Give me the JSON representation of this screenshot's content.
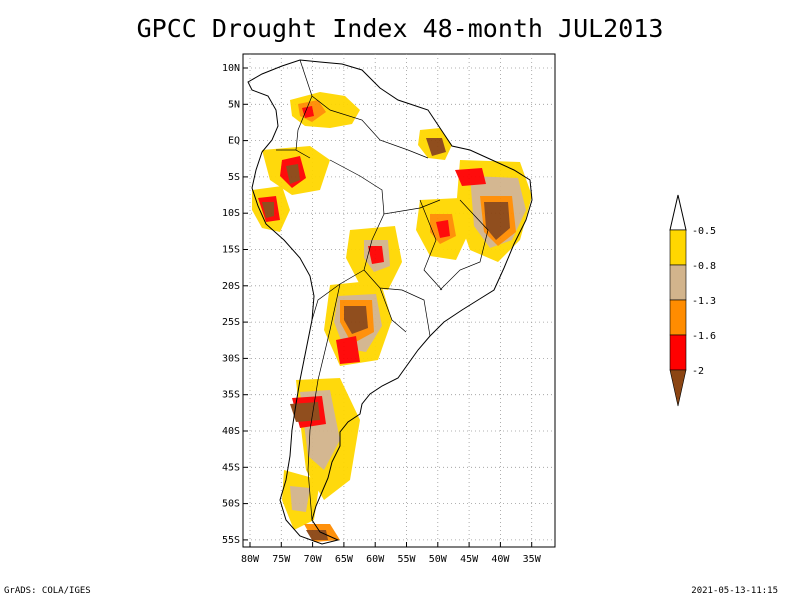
{
  "title": "GPCC Drought Index 48-month JUL2013",
  "footer": {
    "left": "GrADS: COLA/IGES",
    "right": "2021-05-13-11:15"
  },
  "colors": {
    "cat_m05": "#ffd700",
    "cat_m08": "#d2b48c",
    "cat_m13": "#ff8c00",
    "cat_m16": "#ff0000",
    "cat_m20": "#8b4513"
  },
  "map": {
    "lat_labels": [
      "10N",
      "5N",
      "EQ",
      "5S",
      "10S",
      "15S",
      "20S",
      "25S",
      "30S",
      "35S",
      "40S",
      "45S",
      "50S",
      "55S"
    ],
    "lon_labels": [
      "80W",
      "75W",
      "70W",
      "65W",
      "60W",
      "55W",
      "50W",
      "45W",
      "40W",
      "35W"
    ],
    "lat_values": [
      10,
      5,
      0,
      -5,
      -10,
      -15,
      -20,
      -25,
      -30,
      -35,
      -40,
      -45,
      -50,
      -55
    ],
    "lon_values": [
      -80,
      -75,
      -70,
      -65,
      -60,
      -55,
      -50,
      -45,
      -40,
      -35
    ]
  },
  "legend": {
    "labels": [
      "-0.5",
      "-0.8",
      "-1.3",
      "-1.6",
      "-2"
    ]
  }
}
